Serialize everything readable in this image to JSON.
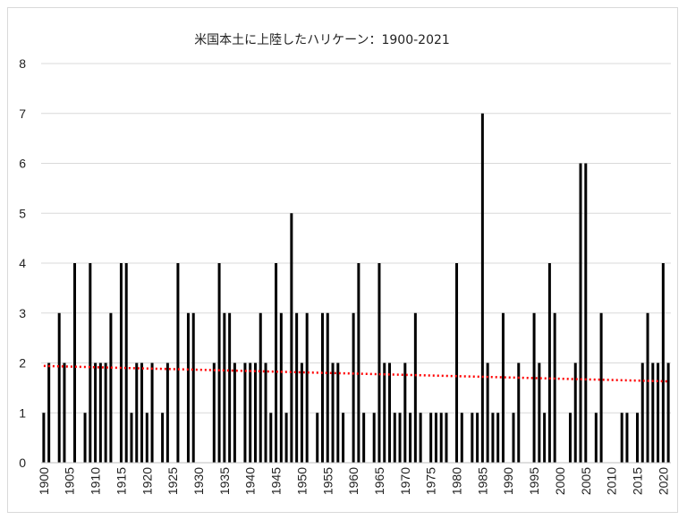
{
  "chart_data": {
    "type": "bar",
    "title": "米国本土に上陸したハリケーン：1900-2021",
    "xlabel": "",
    "ylabel": "",
    "ylim": [
      0,
      8
    ],
    "yticks": [
      0,
      1,
      2,
      3,
      4,
      5,
      6,
      7,
      8
    ],
    "xticks": [
      1900,
      1905,
      1910,
      1915,
      1920,
      1925,
      1930,
      1935,
      1940,
      1945,
      1950,
      1955,
      1960,
      1965,
      1970,
      1975,
      1980,
      1985,
      1990,
      1995,
      2000,
      2005,
      2010,
      2015,
      2020
    ],
    "grid": true,
    "bar_color": "#000000",
    "trend_color": "#ff0000",
    "x": [
      1900,
      1901,
      1902,
      1903,
      1904,
      1905,
      1906,
      1907,
      1908,
      1909,
      1910,
      1911,
      1912,
      1913,
      1914,
      1915,
      1916,
      1917,
      1918,
      1919,
      1920,
      1921,
      1922,
      1923,
      1924,
      1925,
      1926,
      1927,
      1928,
      1929,
      1930,
      1931,
      1932,
      1933,
      1934,
      1935,
      1936,
      1937,
      1938,
      1939,
      1940,
      1941,
      1942,
      1943,
      1944,
      1945,
      1946,
      1947,
      1948,
      1949,
      1950,
      1951,
      1952,
      1953,
      1954,
      1955,
      1956,
      1957,
      1958,
      1959,
      1960,
      1961,
      1962,
      1963,
      1964,
      1965,
      1966,
      1967,
      1968,
      1969,
      1970,
      1971,
      1972,
      1973,
      1974,
      1975,
      1976,
      1977,
      1978,
      1979,
      1980,
      1981,
      1982,
      1983,
      1984,
      1985,
      1986,
      1987,
      1988,
      1989,
      1990,
      1991,
      1992,
      1993,
      1994,
      1995,
      1996,
      1997,
      1998,
      1999,
      2000,
      2001,
      2002,
      2003,
      2004,
      2005,
      2006,
      2007,
      2008,
      2009,
      2010,
      2011,
      2012,
      2013,
      2014,
      2015,
      2016,
      2017,
      2018,
      2019,
      2020,
      2021
    ],
    "values": [
      1,
      2,
      0,
      3,
      2,
      0,
      4,
      0,
      1,
      4,
      2,
      2,
      2,
      3,
      0,
      4,
      4,
      1,
      2,
      2,
      1,
      2,
      0,
      1,
      2,
      0,
      4,
      0,
      3,
      3,
      0,
      0,
      0,
      2,
      4,
      3,
      3,
      2,
      0,
      2,
      2,
      2,
      3,
      2,
      1,
      4,
      3,
      1,
      5,
      3,
      2,
      3,
      0,
      1,
      3,
      3,
      2,
      2,
      1,
      0,
      3,
      4,
      1,
      0,
      1,
      4,
      2,
      2,
      1,
      1,
      2,
      1,
      3,
      1,
      0,
      1,
      1,
      1,
      1,
      0,
      4,
      1,
      0,
      1,
      1,
      7,
      2,
      1,
      1,
      3,
      0,
      1,
      2,
      0,
      0,
      3,
      2,
      1,
      4,
      3,
      0,
      0,
      1,
      2,
      6,
      6,
      0,
      1,
      3,
      0,
      0,
      0,
      1,
      1,
      0,
      1,
      2,
      3,
      2,
      2,
      4,
      2
    ],
    "trend": {
      "type": "linear",
      "start": 1.94,
      "end": 1.63
    }
  }
}
